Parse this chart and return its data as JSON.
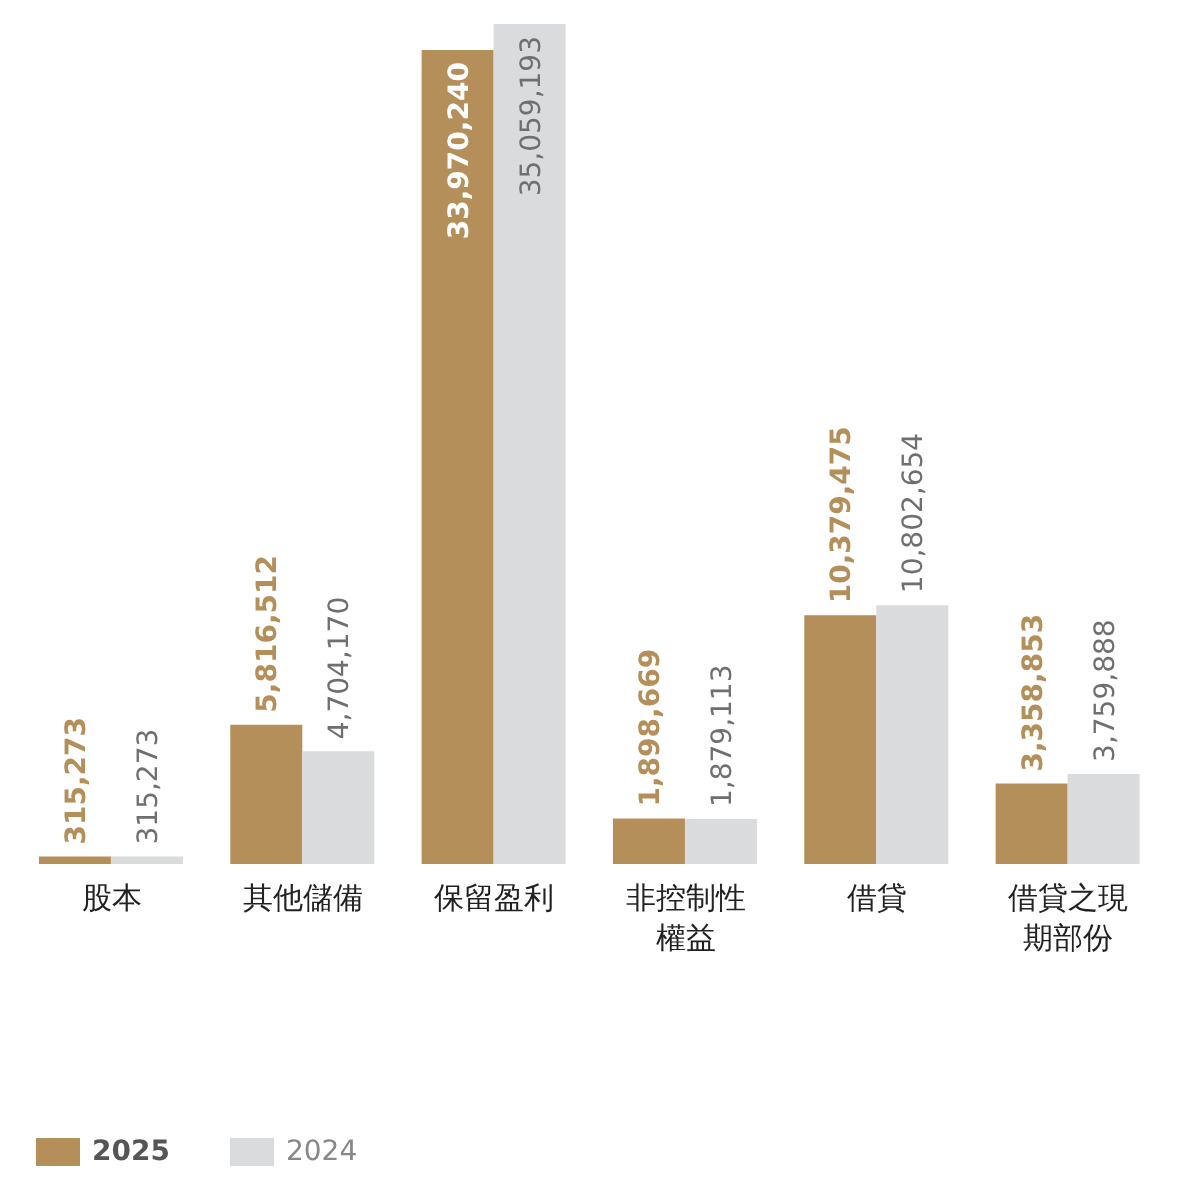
{
  "chart_data": {
    "type": "bar",
    "categories": [
      "股本",
      "其他儲備",
      "保留盈利",
      "非控制性權益",
      "借貸",
      "借貸之現期部份"
    ],
    "series": [
      {
        "name": "2025",
        "color": "#b58f5a",
        "values": [
          315273,
          5816512,
          33970240,
          1898669,
          10379475,
          3358853
        ],
        "value_labels": [
          "315,273",
          "5,816,512",
          "33,970,240",
          "1,898,669",
          "10,379,475",
          "3,358,853"
        ]
      },
      {
        "name": "2024",
        "color": "#d9dbdc",
        "values": [
          315273,
          4704170,
          35059193,
          1879113,
          10802654,
          3759888
        ],
        "value_labels": [
          "315,273",
          "4,704,170",
          "35,059,193",
          "1,879,113",
          "10,802,654",
          "3,759,888"
        ]
      }
    ],
    "legend": "bottom left",
    "grid": false
  }
}
